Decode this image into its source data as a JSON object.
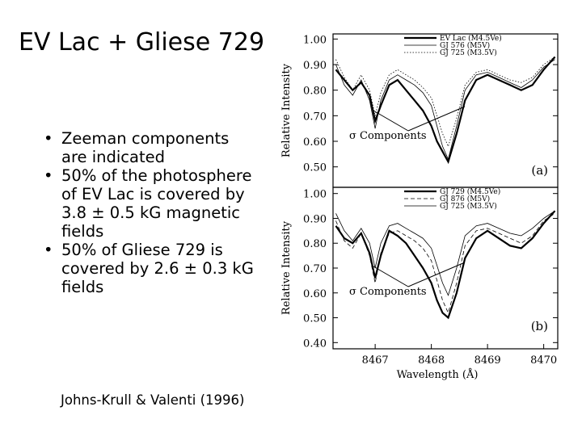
{
  "slide": {
    "title": "EV Lac + Gliese 729",
    "bullets": [
      "Zeeman components are indicated",
      "50% of the photosphere of EV Lac is covered by 3.8 ± 0.5 kG magnetic fields",
      "50% of Gliese 729 is covered by 2.6 ± 0.3 kG fields"
    ],
    "citation": "Johns-Krull & Valenti (1996)"
  },
  "chart_data": [
    {
      "type": "line",
      "ylabel": "Relative Intensity",
      "annotation": "σ Components",
      "panel_label": "(a)",
      "x": [
        8466.3,
        8466.45,
        8466.6,
        8466.75,
        8466.9,
        8467.0,
        8467.1,
        8467.25,
        8467.4,
        8467.55,
        8467.7,
        8467.85,
        8468.0,
        8468.1,
        8468.2,
        8468.3,
        8468.45,
        8468.6,
        8468.8,
        8469.0,
        8469.2,
        8469.4,
        8469.6,
        8469.8,
        8470.0,
        8470.2
      ],
      "xlim": [
        8466.25,
        8470.25
      ],
      "ylim": [
        0.42,
        1.02
      ],
      "yticks": [
        {
          "value": 1,
          "label": "1.00"
        },
        {
          "value": 0.9,
          "label": "0.90"
        },
        {
          "value": 0.8,
          "label": "0.80"
        },
        {
          "value": 0.7,
          "label": "0.70"
        },
        {
          "value": 0.6,
          "label": "0.60"
        },
        {
          "value": 0.5,
          "label": "0.50"
        }
      ],
      "series": [
        {
          "name": "EV Lac (M4.5Ve)",
          "color": "#000000",
          "linestyle": "solid",
          "linewidth": 2.2,
          "values": [
            0.88,
            0.84,
            0.8,
            0.83,
            0.78,
            0.68,
            0.74,
            0.82,
            0.84,
            0.8,
            0.76,
            0.72,
            0.66,
            0.6,
            0.56,
            0.52,
            0.63,
            0.76,
            0.84,
            0.86,
            0.84,
            0.82,
            0.8,
            0.82,
            0.88,
            0.93
          ]
        },
        {
          "name": "GJ 576 (M5V)",
          "color": "#000000",
          "linestyle": "solid",
          "linewidth": 0.8,
          "values": [
            0.9,
            0.82,
            0.78,
            0.84,
            0.76,
            0.65,
            0.76,
            0.84,
            0.86,
            0.84,
            0.82,
            0.79,
            0.74,
            0.66,
            0.58,
            0.53,
            0.66,
            0.8,
            0.86,
            0.87,
            0.85,
            0.83,
            0.81,
            0.84,
            0.89,
            0.92
          ]
        },
        {
          "name": "GJ 725 (M3.5V)",
          "color": "#000000",
          "linestyle": "dotted",
          "linewidth": 0.8,
          "values": [
            0.92,
            0.85,
            0.8,
            0.86,
            0.8,
            0.7,
            0.79,
            0.86,
            0.88,
            0.86,
            0.84,
            0.81,
            0.77,
            0.7,
            0.63,
            0.58,
            0.69,
            0.82,
            0.87,
            0.88,
            0.86,
            0.84,
            0.83,
            0.85,
            0.9,
            0.93
          ]
        }
      ]
    },
    {
      "type": "line",
      "ylabel": "Relative Intensity",
      "xlabel": "Wavelength (Å)",
      "annotation": "σ Components",
      "panel_label": "(b)",
      "x": [
        8466.3,
        8466.45,
        8466.6,
        8466.75,
        8466.9,
        8467.0,
        8467.1,
        8467.25,
        8467.4,
        8467.55,
        8467.7,
        8467.85,
        8468.0,
        8468.1,
        8468.2,
        8468.3,
        8468.45,
        8468.6,
        8468.8,
        8469.0,
        8469.2,
        8469.4,
        8469.6,
        8469.8,
        8470.0,
        8470.2
      ],
      "xlim": [
        8466.25,
        8470.25
      ],
      "ylim": [
        0.375,
        1.025
      ],
      "xticks": [
        8467,
        8468,
        8469,
        8470
      ],
      "yticks": [
        {
          "value": 1,
          "label": "1.00"
        },
        {
          "value": 0.9,
          "label": "0.90"
        },
        {
          "value": 0.8,
          "label": "0.80"
        },
        {
          "value": 0.7,
          "label": "0.70"
        },
        {
          "value": 0.6,
          "label": "0.60"
        },
        {
          "value": 0.5,
          "label": "0.50"
        },
        {
          "value": 0.4,
          "label": "0.40"
        }
      ],
      "series": [
        {
          "name": "GJ 729 (M4.5Ve)",
          "color": "#000000",
          "linestyle": "solid",
          "linewidth": 2.2,
          "values": [
            0.87,
            0.82,
            0.8,
            0.84,
            0.76,
            0.66,
            0.75,
            0.85,
            0.83,
            0.8,
            0.75,
            0.7,
            0.64,
            0.57,
            0.52,
            0.5,
            0.6,
            0.74,
            0.82,
            0.85,
            0.82,
            0.79,
            0.78,
            0.82,
            0.88,
            0.93
          ]
        },
        {
          "name": "GJ 876 (M5V)",
          "color": "#000000",
          "linestyle": "dashed",
          "linewidth": 0.8,
          "values": [
            0.89,
            0.81,
            0.78,
            0.84,
            0.75,
            0.64,
            0.76,
            0.84,
            0.85,
            0.83,
            0.81,
            0.78,
            0.73,
            0.65,
            0.57,
            0.52,
            0.64,
            0.79,
            0.85,
            0.86,
            0.84,
            0.82,
            0.8,
            0.83,
            0.89,
            0.92
          ]
        },
        {
          "name": "GJ 725 (M3.5V)",
          "color": "#000000",
          "linestyle": "solid",
          "linewidth": 0.8,
          "values": [
            0.92,
            0.85,
            0.81,
            0.86,
            0.8,
            0.7,
            0.8,
            0.87,
            0.88,
            0.86,
            0.84,
            0.82,
            0.78,
            0.71,
            0.64,
            0.59,
            0.7,
            0.83,
            0.87,
            0.88,
            0.86,
            0.84,
            0.83,
            0.86,
            0.9,
            0.93
          ]
        }
      ]
    }
  ]
}
